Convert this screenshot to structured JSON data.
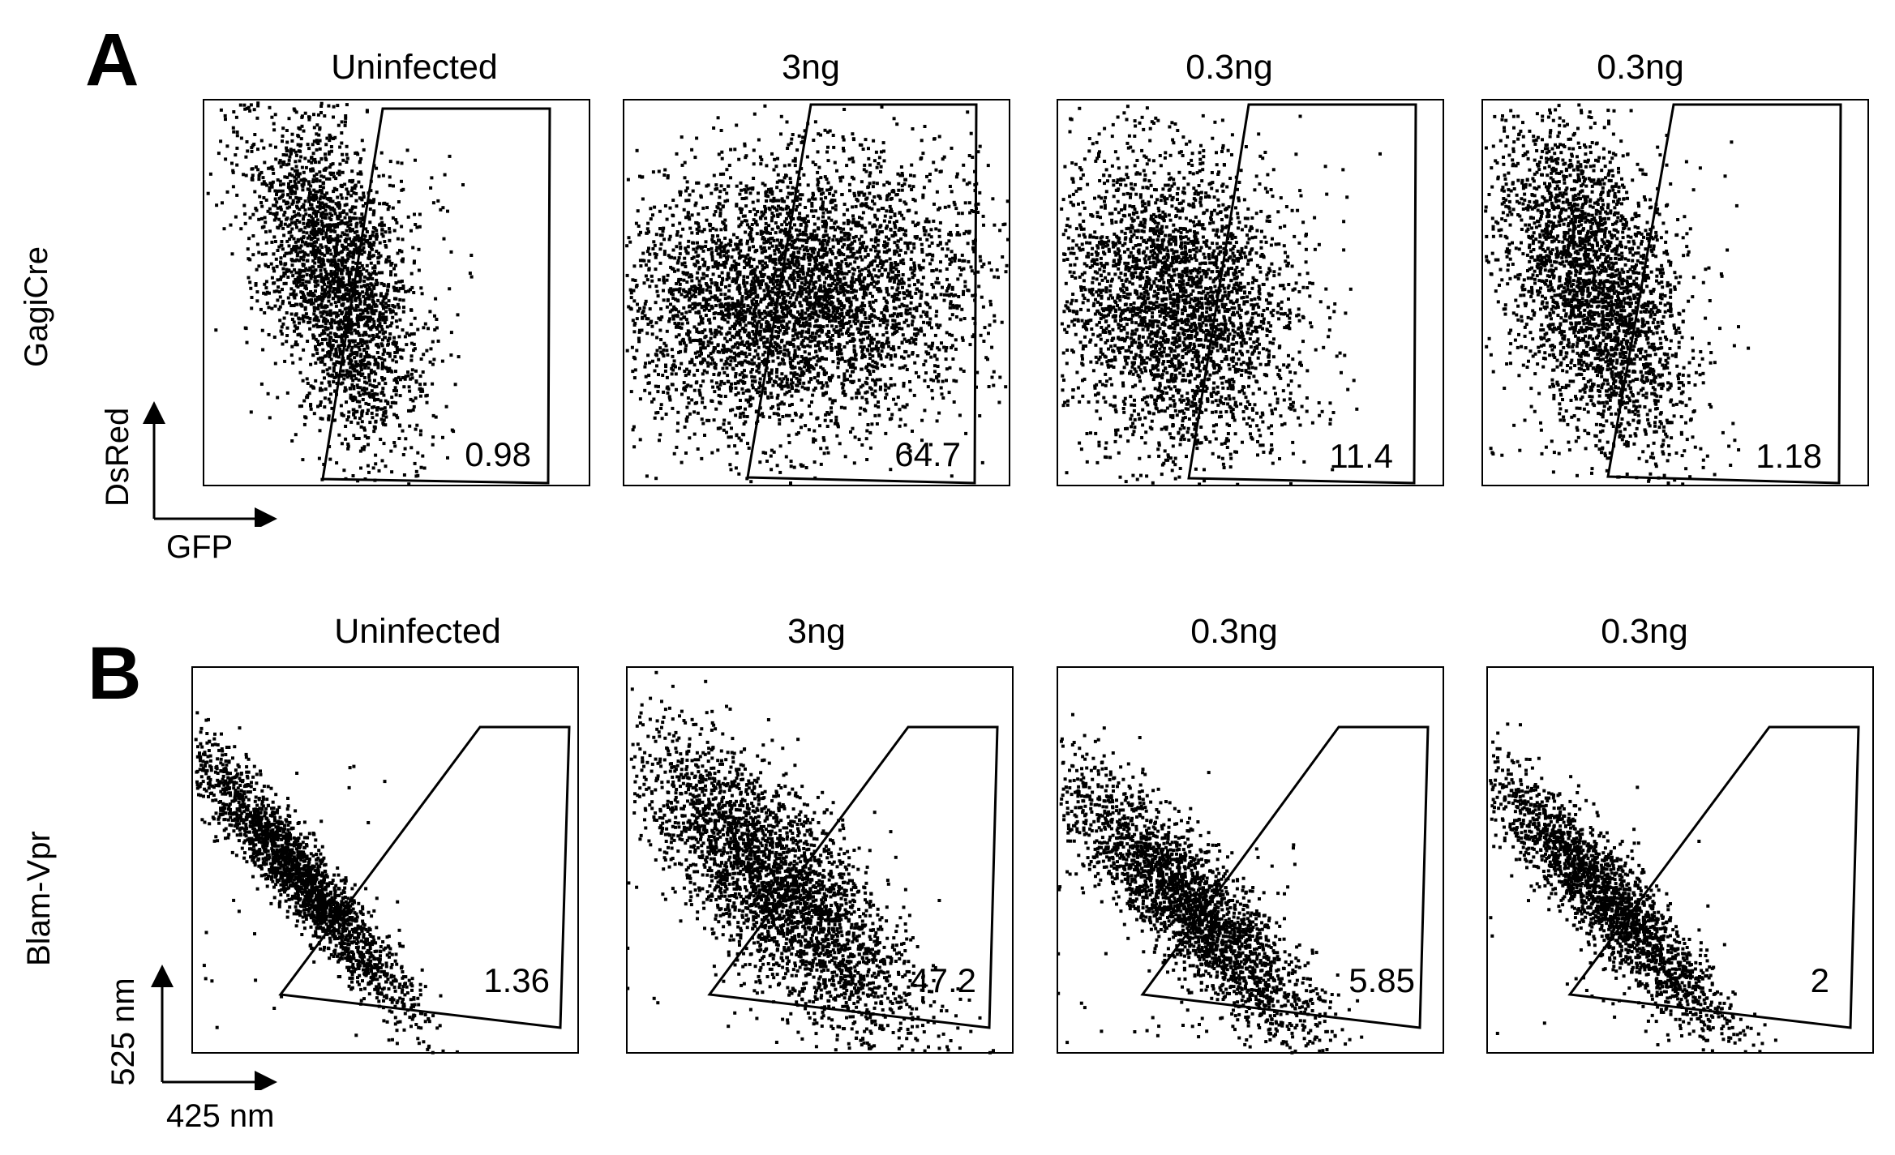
{
  "figure": {
    "panels": [
      {
        "letter": "A",
        "row_label": "GagiCre",
        "x_axis": "GFP",
        "y_axis": "DsRed",
        "plots": [
          {
            "title": "Uninfected",
            "gate_percent": "0.98"
          },
          {
            "title": "3ng",
            "gate_percent": "64.7"
          },
          {
            "title": "0.3ng",
            "gate_percent": "11.4"
          },
          {
            "title": "0.3ng",
            "gate_percent": "1.18"
          }
        ]
      },
      {
        "letter": "B",
        "row_label": "Blam-Vpr",
        "x_axis": "425 nm",
        "y_axis": "525 nm",
        "plots": [
          {
            "title": "Uninfected",
            "gate_percent": "1.36"
          },
          {
            "title": "3ng",
            "gate_percent": "47.2"
          },
          {
            "title": "0.3ng",
            "gate_percent": "5.85"
          },
          {
            "title": "0.3ng",
            "gate_percent": "2"
          }
        ]
      }
    ]
  },
  "chart_data": [
    {
      "type": "scatter",
      "panel": "A",
      "title": "Uninfected",
      "xlabel": "GFP",
      "ylabel": "DsRed",
      "gate_percent": 0.98
    },
    {
      "type": "scatter",
      "panel": "A",
      "title": "3ng",
      "xlabel": "GFP",
      "ylabel": "DsRed",
      "gate_percent": 64.7
    },
    {
      "type": "scatter",
      "panel": "A",
      "title": "0.3ng",
      "xlabel": "GFP",
      "ylabel": "DsRed",
      "gate_percent": 11.4
    },
    {
      "type": "scatter",
      "panel": "A",
      "title": "0.3ng",
      "xlabel": "GFP",
      "ylabel": "DsRed",
      "gate_percent": 1.18
    },
    {
      "type": "scatter",
      "panel": "B",
      "title": "Uninfected",
      "xlabel": "425 nm",
      "ylabel": "525 nm",
      "gate_percent": 1.36
    },
    {
      "type": "scatter",
      "panel": "B",
      "title": "3ng",
      "xlabel": "425 nm",
      "ylabel": "525 nm",
      "gate_percent": 47.2
    },
    {
      "type": "scatter",
      "panel": "B",
      "title": "0.3ng",
      "xlabel": "425 nm",
      "ylabel": "525 nm",
      "gate_percent": 5.85
    },
    {
      "type": "scatter",
      "panel": "B",
      "title": "0.3ng",
      "xlabel": "425 nm",
      "ylabel": "525 nm",
      "gate_percent": 2
    }
  ]
}
